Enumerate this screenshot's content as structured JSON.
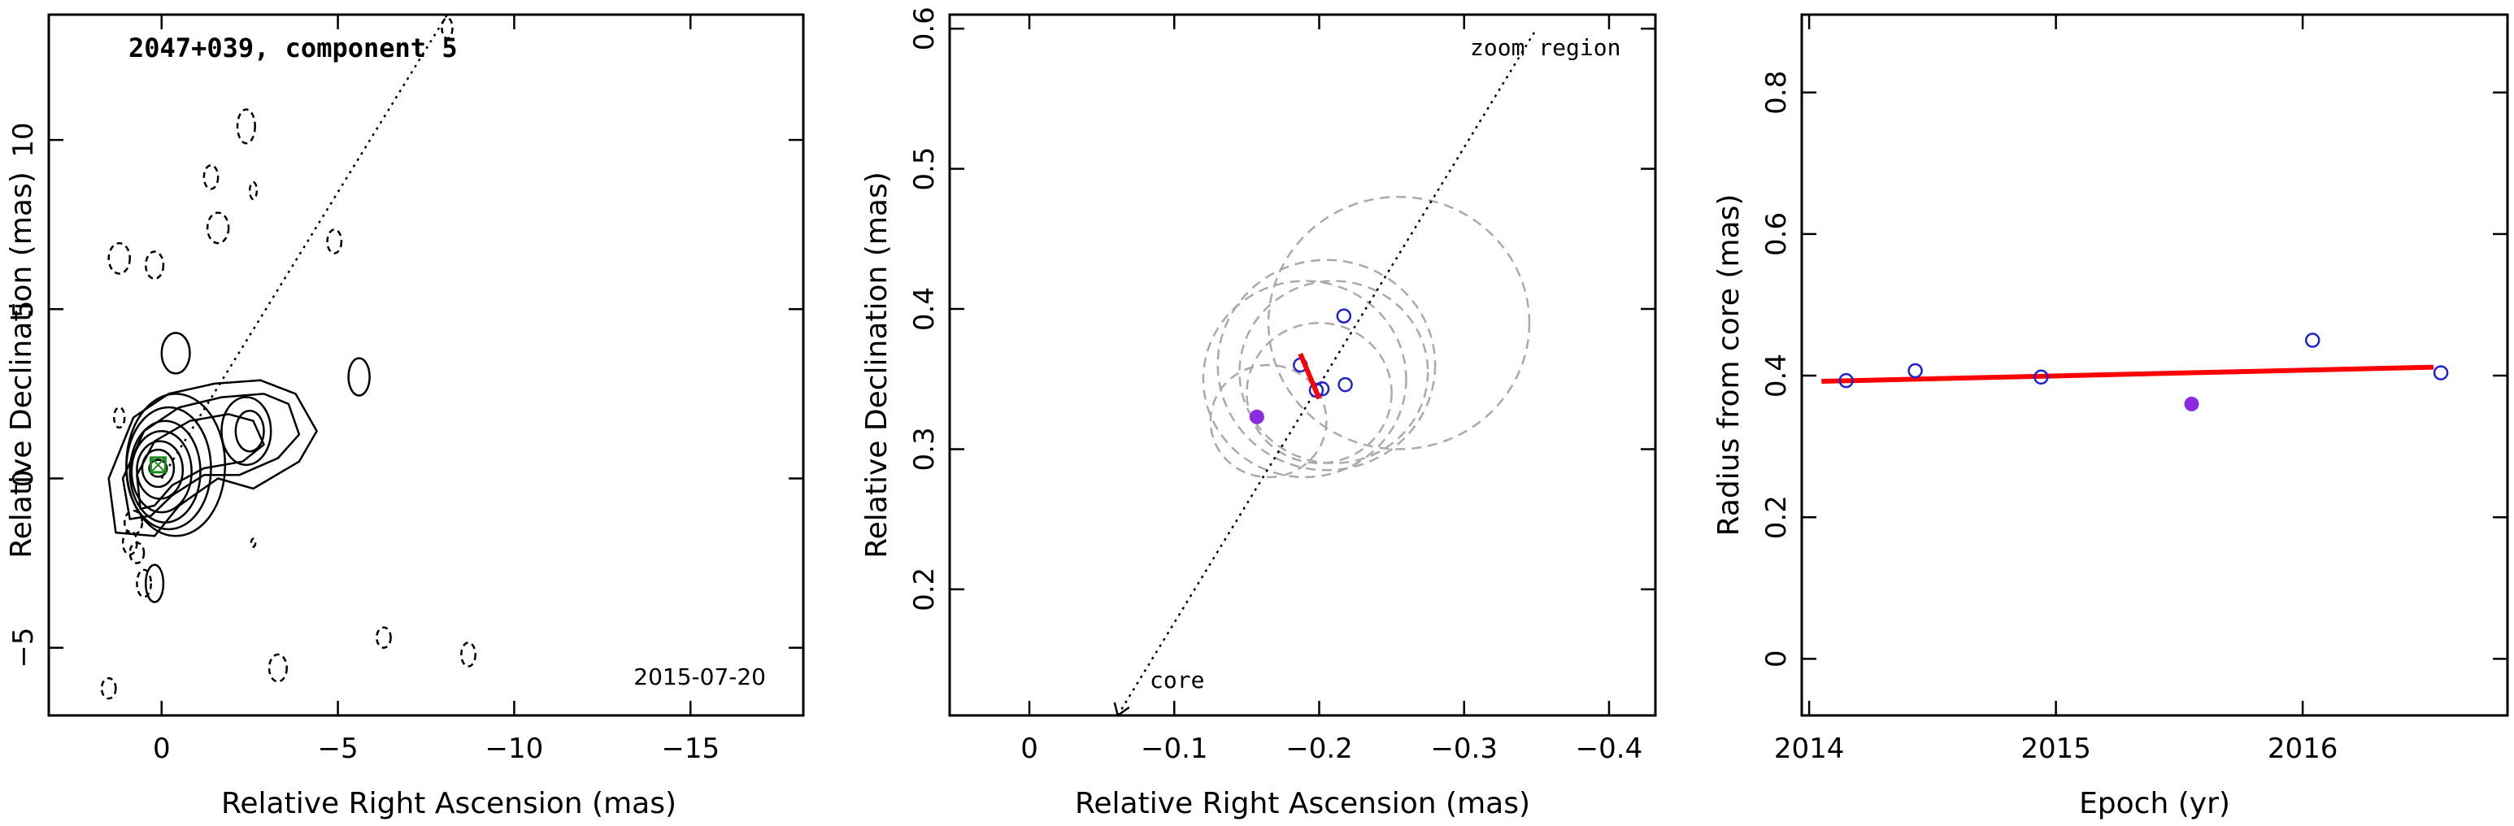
{
  "chart_data": [
    {
      "type": "contour",
      "title": "2047+039, component 5",
      "date_label": "2015-07-20",
      "xlabel": "Relative Right Ascension (mas)",
      "ylabel": "Relative Declination (mas)",
      "xlim": [
        3.2,
        -18.2
      ],
      "ylim": [
        -7.0,
        13.7
      ],
      "x_ticks": [
        0,
        -5,
        -10,
        -15
      ],
      "x_tick_labels": [
        "0",
        "−5",
        "−10",
        "−15"
      ],
      "y_ticks": [
        -5,
        0,
        5,
        10
      ],
      "y_tick_labels": [
        "−5",
        "0",
        "5",
        "10"
      ],
      "core": {
        "x": 0.1,
        "y": 0.4
      },
      "direction_line": {
        "from": [
          0.0,
          0.0
        ],
        "to": [
          -8.1,
          13.7
        ]
      },
      "positive_contours": [
        {
          "cx": 0.1,
          "cy": 0.3,
          "rx": 0.25,
          "ry": 0.25
        },
        {
          "cx": 0.1,
          "cy": 0.3,
          "rx": 0.45,
          "ry": 0.55
        },
        {
          "cx": 0.05,
          "cy": 0.25,
          "rx": 0.65,
          "ry": 0.85
        },
        {
          "cx": 0.0,
          "cy": 0.2,
          "rx": 0.85,
          "ry": 1.2
        },
        {
          "cx": -0.1,
          "cy": 0.2,
          "rx": 1.0,
          "ry": 1.5
        },
        {
          "cx": -0.2,
          "cy": 0.3,
          "rx": 1.2,
          "ry": 1.8
        },
        {
          "cx": -0.4,
          "cy": 0.4,
          "rx": 1.4,
          "ry": 2.1
        },
        {
          "cx": -2.5,
          "cy": 1.4,
          "rx": 0.4,
          "ry": 0.6
        },
        {
          "cx": -2.4,
          "cy": 1.4,
          "rx": 0.7,
          "ry": 1.0
        },
        {
          "cx": -0.4,
          "cy": 3.7,
          "rx": 0.4,
          "ry": 0.6
        },
        {
          "cx": -5.6,
          "cy": 3.0,
          "rx": 0.3,
          "ry": 0.55
        },
        {
          "cx": 0.2,
          "cy": -3.1,
          "rx": 0.25,
          "ry": 0.55
        }
      ],
      "outer_contours": [
        "1.3,-1.6 1.5,0.0 0.8,1.8 -0.2,2.5 -1.5,2.8 -2.8,2.9 -3.8,2.5 -4.4,1.4 -3.9,0.5 -2.6,-0.3 -1.6,0.0 -0.5,-0.8 0.2,-1.7",
        "0.9,-1.2 1.1,0.0 0.5,1.4 -0.5,2.1 -1.7,2.4 -2.9,2.5 -3.6,2.2 -3.9,1.3 -3.3,0.6 -2.2,0.1 -1.2,0.1 -0.3,-0.5 0.3,-1.1",
        "0.6,-0.9 0.7,0.1 0.2,1.1 -0.8,1.7 -1.9,1.9 -2.6,1.7 -2.9,1.0 -2.3,0.5 -1.2,0.3 -0.3,-0.2 0.2,-0.8"
      ],
      "negative_contours": [
        {
          "cx": 1.2,
          "cy": 6.5,
          "rx": 0.3,
          "ry": 0.45
        },
        {
          "cx": 0.2,
          "cy": 6.3,
          "rx": 0.25,
          "ry": 0.4
        },
        {
          "cx": -1.4,
          "cy": 8.9,
          "rx": 0.2,
          "ry": 0.35
        },
        {
          "cx": -1.6,
          "cy": 7.4,
          "rx": 0.3,
          "ry": 0.45
        },
        {
          "cx": -2.4,
          "cy": 10.4,
          "rx": 0.25,
          "ry": 0.5
        },
        {
          "cx": -2.6,
          "cy": 8.5,
          "rx": 0.1,
          "ry": 0.25
        },
        {
          "cx": -4.9,
          "cy": 7.0,
          "rx": 0.2,
          "ry": 0.35
        },
        {
          "cx": -8.1,
          "cy": 13.3,
          "rx": 0.15,
          "ry": 0.3
        },
        {
          "cx": 1.2,
          "cy": 1.8,
          "rx": 0.15,
          "ry": 0.3
        },
        {
          "cx": 0.8,
          "cy": -1.3,
          "rx": 0.25,
          "ry": 0.35
        },
        {
          "cx": 0.9,
          "cy": -1.9,
          "rx": 0.2,
          "ry": 0.35
        },
        {
          "cx": 0.7,
          "cy": -2.2,
          "rx": 0.2,
          "ry": 0.3
        },
        {
          "cx": 0.5,
          "cy": -3.1,
          "rx": 0.2,
          "ry": 0.4
        },
        {
          "cx": -2.6,
          "cy": -1.9,
          "rx": 0.06,
          "ry": 0.12
        },
        {
          "cx": -3.3,
          "cy": -5.6,
          "rx": 0.25,
          "ry": 0.4
        },
        {
          "cx": -6.3,
          "cy": -4.7,
          "rx": 0.2,
          "ry": 0.3
        },
        {
          "cx": -8.7,
          "cy": -5.2,
          "rx": 0.2,
          "ry": 0.35
        },
        {
          "cx": 1.5,
          "cy": -6.2,
          "rx": 0.2,
          "ry": 0.3
        }
      ]
    },
    {
      "type": "scatter",
      "annotation_top": "zoom region",
      "annotation_bottom": "core",
      "xlabel": "Relative Right Ascension (mas)",
      "ylabel": "Relative Declination (mas)",
      "xlim": [
        0.055,
        -0.432
      ],
      "ylim": [
        0.11,
        0.61
      ],
      "x_ticks": [
        0,
        -0.1,
        -0.2,
        -0.3,
        -0.4
      ],
      "x_tick_labels": [
        "0",
        "−0.1",
        "−0.2",
        "−0.3",
        "−0.4"
      ],
      "y_ticks": [
        0.2,
        0.3,
        0.4,
        0.5,
        0.6
      ],
      "y_tick_labels": [
        "0.2",
        "0.3",
        "0.4",
        "0.5",
        "0.6"
      ],
      "direction_line": {
        "from": [
          -0.061,
          0.11
        ],
        "to": [
          -0.35,
          0.6
        ]
      },
      "open_points": [
        {
          "x": -0.217,
          "y": 0.395
        },
        {
          "x": -0.187,
          "y": 0.36
        },
        {
          "x": -0.198,
          "y": 0.342
        },
        {
          "x": -0.202,
          "y": 0.343
        },
        {
          "x": -0.218,
          "y": 0.346
        }
      ],
      "filled_points": [
        {
          "x": -0.157,
          "y": 0.323
        }
      ],
      "error_circles": [
        {
          "x": -0.255,
          "y": 0.39,
          "r": 0.09
        },
        {
          "x": -0.205,
          "y": 0.36,
          "r": 0.075
        },
        {
          "x": -0.21,
          "y": 0.355,
          "r": 0.065
        },
        {
          "x": -0.19,
          "y": 0.35,
          "r": 0.07
        },
        {
          "x": -0.2,
          "y": 0.34,
          "r": 0.05
        },
        {
          "x": -0.165,
          "y": 0.32,
          "r": 0.04
        }
      ],
      "fit_segment": {
        "from": [
          -0.187,
          0.368
        ],
        "to": [
          -0.2,
          0.336
        ]
      },
      "colors": {
        "open": "#2222cc",
        "filled": "#8a2be2",
        "fit": "#ff0000",
        "circle": "#aaaaaa"
      }
    },
    {
      "type": "scatter",
      "xlabel": "Epoch (yr)",
      "ylabel": "Radius from core (mas)",
      "xlim": [
        2013.97,
        2016.83
      ],
      "ylim": [
        -0.08,
        0.91
      ],
      "x_ticks": [
        2014,
        2015,
        2016
      ],
      "x_tick_labels": [
        "2014",
        "2015",
        "2016"
      ],
      "y_ticks": [
        0,
        0.2,
        0.4,
        0.6,
        0.8
      ],
      "y_tick_labels": [
        "0",
        "0.2",
        "0.4",
        "0.6",
        "0.8"
      ],
      "open_points": [
        {
          "x": 2014.15,
          "y": 0.393
        },
        {
          "x": 2014.43,
          "y": 0.407
        },
        {
          "x": 2014.94,
          "y": 0.398
        },
        {
          "x": 2016.04,
          "y": 0.45
        },
        {
          "x": 2016.56,
          "y": 0.404
        }
      ],
      "filled_points": [
        {
          "x": 2015.55,
          "y": 0.36
        }
      ],
      "fit_line": {
        "from": [
          2014.05,
          0.392
        ],
        "to": [
          2016.53,
          0.412
        ]
      },
      "colors": {
        "open": "#2222cc",
        "filled": "#8a2be2",
        "fit": "#ff0000"
      }
    }
  ]
}
